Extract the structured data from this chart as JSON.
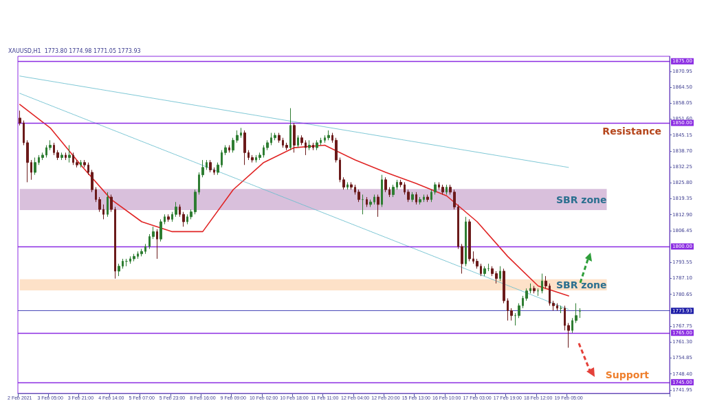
{
  "chart_data": {
    "type": "candlestick",
    "annotations": [
      "XAUUSD,H1  1773.80 1774.98 1771.05 1773.93",
      "Resistance",
      "Support"
    ],
    "categories": [
      "2 Feb 2021",
      null,
      null,
      null,
      null,
      null,
      null,
      null,
      "3 Feb 05:00",
      null,
      null,
      null,
      null,
      null,
      null,
      null,
      "3 Feb 21:00",
      null,
      null,
      null,
      null,
      null,
      null,
      null,
      "4 Feb 14:00",
      null,
      null,
      null,
      null,
      null,
      null,
      null,
      "5 Feb 07:00",
      null,
      null,
      null,
      null,
      null,
      null,
      null,
      "5 Feb 23:00",
      null,
      null,
      null,
      null,
      null,
      null,
      null,
      "8 Feb 16:00",
      null,
      null,
      null,
      null,
      null,
      null,
      null,
      "9 Feb 09:00",
      null,
      null,
      null,
      null,
      null,
      null,
      null,
      "10 Feb 02:00",
      null,
      null,
      null,
      null,
      null,
      null,
      null,
      "10 Feb 18:00",
      null,
      null,
      null,
      null,
      null,
      null,
      null,
      "11 Feb 11:00",
      null,
      null,
      null,
      null,
      null,
      null,
      null,
      "12 Feb 04:00",
      null,
      null,
      null,
      null,
      null,
      null,
      null,
      "12 Feb 20:00",
      null,
      null,
      null,
      null,
      null,
      null,
      null,
      "15 Feb 13:00",
      null,
      null,
      null,
      null,
      null,
      null,
      null,
      "16 Feb 10:00",
      null,
      null,
      null,
      null,
      null,
      null,
      null,
      "17 Feb 03:00",
      null,
      null,
      null,
      null,
      null,
      null,
      null,
      "17 Feb 19:00",
      null,
      null,
      null,
      null,
      null,
      null,
      null,
      "18 Feb 12:00",
      null,
      null,
      null,
      null,
      null,
      null,
      null,
      "19 Feb 05:00",
      null,
      null,
      null,
      null,
      null,
      null,
      null,
      null,
      null,
      null,
      null,
      null,
      null,
      null,
      null,
      null,
      null,
      null,
      null,
      null,
      null,
      null,
      null,
      null,
      null,
      null
    ],
    "ylim": [
      1740.5,
      1877
    ],
    "yticks": [
      1741.95,
      {
        "value": 1748.4,
        "label": "1748.40"
      },
      1754.85,
      {
        "value": 1761.3,
        "label": "1761.30"
      },
      1767.75,
      1780.65,
      {
        "value": 1787.1,
        "label": "1787.10"
      },
      1793.55,
      1806.45,
      {
        "value": 1812.9,
        "label": "1812.90"
      },
      1819.35,
      {
        "value": 1825.8,
        "label": "1825.80"
      },
      1832.25,
      {
        "value": 1838.7,
        "label": "1838.70"
      },
      1845.15,
      {
        "value": 1851.6,
        "label": "1851.60"
      },
      1858.05,
      {
        "value": 1864.5,
        "label": "1864.50"
      },
      1870.95
    ],
    "grid": false,
    "marker": "none",
    "ref_lines": [
      {
        "axis": "y",
        "value": 1875,
        "label": "1875.00",
        "color": "#8a2be2"
      },
      {
        "axis": "y",
        "value": 1850,
        "label": "1850.00",
        "color": "#8a2be2"
      },
      {
        "axis": "y",
        "value": 1800,
        "label": "1800.00",
        "color": "#8a2be2"
      },
      {
        "axis": "y",
        "value": 1773.93,
        "label": "1773.93",
        "color": "#1a1aa6",
        "line_style": "solid"
      },
      {
        "axis": "y",
        "value": 1765,
        "label": "1765.00",
        "color": "#8a2be2"
      },
      {
        "axis": "y",
        "value": 1745,
        "label": "1745.00",
        "color": "#8a2be2"
      }
    ],
    "bands": [
      {
        "axis": "y",
        "from": 1814.7,
        "to": 1823.3,
        "label": "SBR zone",
        "color": "#d9c0dc"
      },
      {
        "axis": "y",
        "from": 1782.2,
        "to": 1786.7,
        "label": "SBR zone",
        "color": "#fde1c8"
      }
    ],
    "series": [
      {
        "colors": [
          "#6b1a1a",
          "#6b1a1a",
          "#6b1a1a",
          "#6b1a1a",
          "#2e7d32",
          "#2e7d32",
          "#2e7d32",
          "#2e7d32",
          "#2e7d32",
          "#6b1a1a",
          "#6b1a1a",
          "#2e7d32",
          "#6b1a1a",
          "#2e7d32",
          "#6b1a1a",
          "#6b1a1a",
          "#2e7d32",
          "#6b1a1a",
          "#6b1a1a",
          "#6b1a1a",
          "#6b1a1a",
          "#6b1a1a",
          "#6b1a1a",
          "#2e7d32",
          "#6b1a1a",
          "#6b1a1a",
          "#2e7d32",
          "#2e7d32",
          "#2e7d32",
          "#2e7d32",
          "#2e7d32",
          "#2e7d32",
          "#2e7d32",
          "#2e7d32",
          "#2e7d32",
          "#2e7d32",
          "#6b1a1a",
          "#2e7d32",
          "#2e7d32",
          "#6b1a1a",
          "#2e7d32",
          "#2e7d32",
          "#6b1a1a",
          "#6b1a1a",
          "#2e7d32",
          "#2e7d32",
          "#2e7d32",
          "#2e7d32",
          "#2e7d32",
          "#2e7d32",
          "#6b1a1a",
          "#6b1a1a",
          "#2e7d32",
          "#2e7d32",
          "#2e7d32",
          "#6b1a1a",
          "#2e7d32",
          "#2e7d32",
          "#2e7d32",
          "#6b1a1a",
          "#6b1a1a",
          "#6b1a1a",
          "#2e7d32",
          "#2e7d32",
          "#2e7d32",
          "#2e7d32",
          "#2e7d32",
          "#2e7d32",
          "#6b1a1a",
          "#6b1a1a",
          "#6b1a1a",
          "#2e7d32",
          "#6b1a1a",
          "#2e7d32",
          "#6b1a1a",
          "#6b1a1a",
          "#2e7d32",
          "#6b1a1a",
          "#2e7d32",
          "#2e7d32",
          "#2e7d32",
          "#2e7d32",
          "#6b1a1a",
          "#6b1a1a",
          "#6b1a1a",
          "#6b1a1a",
          "#2e7d32",
          "#6b1a1a",
          "#6b1a1a",
          "#6b1a1a",
          "#2e7d32",
          "#6b1a1a",
          "#2e7d32",
          "#2e7d32",
          "#6b1a1a",
          "#2e7d32",
          "#6b1a1a",
          "#6b1a1a",
          "#2e7d32",
          "#2e7d32",
          "#6b1a1a",
          "#6b1a1a",
          "#6b1a1a",
          "#2e7d32",
          "#6b1a1a",
          "#2e7d32",
          "#2e7d32",
          "#6b1a1a",
          "#2e7d32",
          "#2e7d32",
          "#6b1a1a",
          "#6b1a1a",
          "#2e7d32",
          "#6b1a1a",
          "#6b1a1a",
          "#6b1a1a",
          "#6b1a1a",
          "#2e7d32",
          "#6b1a1a",
          "#6b1a1a",
          "#6b1a1a",
          "#6b1a1a",
          "#2e7d32",
          "#2e7d32",
          "#6b1a1a",
          "#6b1a1a",
          "#2e7d32",
          "#6b1a1a",
          "#6b1a1a",
          "#6b1a1a",
          "#2e7d32",
          "#2e7d32",
          "#2e7d32",
          "#2e7d32",
          "#2e7d32",
          "#6b1a1a",
          "#2e7d32",
          "#2e7d32",
          "#6b1a1a",
          "#6b1a1a",
          "#6b1a1a",
          "#6b1a1a",
          "#2e7d32",
          "#6b1a1a",
          "#6b1a1a",
          "#2e7d32",
          "#2e7d32",
          "#2e7d32",
          null,
          null,
          null,
          null,
          null,
          null,
          null,
          null,
          null,
          null,
          null,
          null,
          null,
          null,
          null,
          null,
          null,
          null,
          null,
          null,
          null,
          null,
          null
        ],
        "ohlc": [
          [
            1852,
            1855,
            1849,
            1850
          ],
          [
            1850,
            1851,
            1841,
            1842
          ],
          [
            1842,
            1843,
            1826,
            1834
          ],
          [
            1834,
            1835,
            1827,
            1830
          ],
          [
            1830,
            1836,
            1829,
            1834
          ],
          [
            1834,
            1837,
            1833,
            1836
          ],
          [
            1836,
            1838,
            1835,
            1837
          ],
          [
            1837,
            1841,
            1836,
            1840
          ],
          [
            1840,
            1843,
            1839,
            1841
          ],
          [
            1841,
            1842,
            1837,
            1838
          ],
          [
            1838,
            1839,
            1835,
            1836
          ],
          [
            1836,
            1838,
            1835,
            1837
          ],
          [
            1837,
            1838,
            1835,
            1836
          ],
          [
            1836,
            1841,
            1834,
            1837
          ],
          [
            1837,
            1838,
            1833,
            1834
          ],
          [
            1834,
            1835,
            1832,
            1833
          ],
          [
            1833,
            1835,
            1832,
            1834
          ],
          [
            1834,
            1835,
            1832,
            1833
          ],
          [
            1833,
            1834,
            1829,
            1830
          ],
          [
            1830,
            1831,
            1822,
            1823
          ],
          [
            1823,
            1824,
            1818,
            1819
          ],
          [
            1819,
            1820,
            1814,
            1815
          ],
          [
            1815,
            1817,
            1811,
            1813
          ],
          [
            1813,
            1822,
            1812,
            1820
          ],
          [
            1820,
            1821,
            1814,
            1815
          ],
          [
            1815,
            1816,
            1787,
            1790
          ],
          [
            1790,
            1793,
            1788,
            1792
          ],
          [
            1792,
            1795,
            1791,
            1794
          ],
          [
            1794,
            1795,
            1792,
            1794
          ],
          [
            1794,
            1796,
            1793,
            1795
          ],
          [
            1795,
            1797,
            1794,
            1796
          ],
          [
            1796,
            1798,
            1795,
            1797
          ],
          [
            1797,
            1799,
            1796,
            1798
          ],
          [
            1798,
            1801,
            1797,
            1800
          ],
          [
            1800,
            1805,
            1799,
            1804
          ],
          [
            1804,
            1808,
            1803,
            1806
          ],
          [
            1806,
            1807,
            1795,
            1803
          ],
          [
            1803,
            1811,
            1802,
            1810
          ],
          [
            1810,
            1813,
            1809,
            1812
          ],
          [
            1812,
            1813,
            1810,
            1811
          ],
          [
            1811,
            1814,
            1810,
            1813
          ],
          [
            1813,
            1818,
            1812,
            1816
          ],
          [
            1816,
            1817,
            1812,
            1813
          ],
          [
            1813,
            1814,
            1808,
            1810
          ],
          [
            1810,
            1813,
            1809,
            1812
          ],
          [
            1812,
            1815,
            1811,
            1814
          ],
          [
            1814,
            1823,
            1813,
            1822
          ],
          [
            1822,
            1830,
            1821,
            1829
          ],
          [
            1829,
            1835,
            1828,
            1832
          ],
          [
            1832,
            1835,
            1831,
            1834
          ],
          [
            1834,
            1835,
            1830,
            1831
          ],
          [
            1831,
            1832,
            1829,
            1830
          ],
          [
            1830,
            1834,
            1829,
            1833
          ],
          [
            1833,
            1839,
            1832,
            1838
          ],
          [
            1838,
            1841,
            1837,
            1840
          ],
          [
            1840,
            1841,
            1838,
            1839
          ],
          [
            1839,
            1844,
            1838,
            1843
          ],
          [
            1843,
            1847,
            1842,
            1845
          ],
          [
            1845,
            1848,
            1844,
            1846
          ],
          [
            1846,
            1847,
            1833,
            1838
          ],
          [
            1838,
            1839,
            1835,
            1836
          ],
          [
            1836,
            1837,
            1834,
            1835
          ],
          [
            1835,
            1837,
            1834,
            1836
          ],
          [
            1836,
            1838,
            1835,
            1837
          ],
          [
            1837,
            1841,
            1836,
            1840
          ],
          [
            1840,
            1843,
            1839,
            1842
          ],
          [
            1842,
            1846,
            1841,
            1844
          ],
          [
            1844,
            1846,
            1843,
            1845
          ],
          [
            1845,
            1846,
            1842,
            1843
          ],
          [
            1843,
            1844,
            1840,
            1841
          ],
          [
            1841,
            1842,
            1839,
            1840
          ],
          [
            1840,
            1856,
            1839,
            1849
          ],
          [
            1849,
            1850,
            1838,
            1841
          ],
          [
            1841,
            1845,
            1840,
            1844
          ],
          [
            1844,
            1845,
            1841,
            1842
          ],
          [
            1842,
            1843,
            1837,
            1840
          ],
          [
            1840,
            1843,
            1839,
            1841
          ],
          [
            1841,
            1842,
            1839,
            1840
          ],
          [
            1840,
            1843,
            1839,
            1842
          ],
          [
            1842,
            1844,
            1841,
            1843
          ],
          [
            1843,
            1845,
            1842,
            1844
          ],
          [
            1844,
            1847,
            1843,
            1845
          ],
          [
            1845,
            1846,
            1842,
            1843
          ],
          [
            1843,
            1844,
            1834,
            1835
          ],
          [
            1835,
            1836,
            1826,
            1827
          ],
          [
            1827,
            1828,
            1823,
            1824
          ],
          [
            1824,
            1826,
            1823,
            1825
          ],
          [
            1825,
            1826,
            1823,
            1824
          ],
          [
            1824,
            1825,
            1821,
            1822
          ],
          [
            1822,
            1823,
            1818,
            1819
          ],
          [
            1819,
            1821,
            1813,
            1819
          ],
          [
            1819,
            1820,
            1816,
            1817
          ],
          [
            1817,
            1819,
            1816,
            1818
          ],
          [
            1818,
            1821,
            1817,
            1820
          ],
          [
            1820,
            1821,
            1812,
            1817
          ],
          [
            1817,
            1829,
            1816,
            1827
          ],
          [
            1827,
            1828,
            1822,
            1823
          ],
          [
            1823,
            1824,
            1820,
            1821
          ],
          [
            1821,
            1825,
            1820,
            1824
          ],
          [
            1824,
            1827,
            1823,
            1826
          ],
          [
            1826,
            1827,
            1824,
            1825
          ],
          [
            1825,
            1826,
            1821,
            1822
          ],
          [
            1822,
            1823,
            1818,
            1819
          ],
          [
            1819,
            1822,
            1818,
            1821
          ],
          [
            1821,
            1822,
            1817,
            1818
          ],
          [
            1818,
            1820,
            1817,
            1819
          ],
          [
            1819,
            1821,
            1818,
            1820
          ],
          [
            1820,
            1821,
            1818,
            1819
          ],
          [
            1819,
            1823,
            1818,
            1822
          ],
          [
            1822,
            1826,
            1821,
            1825
          ],
          [
            1825,
            1826,
            1823,
            1824
          ],
          [
            1824,
            1825,
            1821,
            1822
          ],
          [
            1822,
            1825,
            1821,
            1824
          ],
          [
            1824,
            1825,
            1821,
            1822
          ],
          [
            1822,
            1823,
            1815,
            1816
          ],
          [
            1816,
            1817,
            1799,
            1800
          ],
          [
            1800,
            1801,
            1789,
            1793
          ],
          [
            1793,
            1812,
            1792,
            1810
          ],
          [
            1810,
            1811,
            1794,
            1795
          ],
          [
            1795,
            1798,
            1793,
            1794
          ],
          [
            1794,
            1795,
            1791,
            1792
          ],
          [
            1792,
            1793,
            1788,
            1789
          ],
          [
            1789,
            1792,
            1788,
            1791
          ],
          [
            1791,
            1793,
            1790,
            1791
          ],
          [
            1791,
            1792,
            1788,
            1789
          ],
          [
            1789,
            1790,
            1785,
            1787
          ],
          [
            1787,
            1792,
            1786,
            1790
          ],
          [
            1790,
            1791,
            1777,
            1778
          ],
          [
            1778,
            1779,
            1770,
            1774
          ],
          [
            1774,
            1775,
            1770,
            1772
          ],
          [
            1772,
            1773,
            1768,
            1772
          ],
          [
            1772,
            1777,
            1771,
            1776
          ],
          [
            1776,
            1780,
            1775,
            1779
          ],
          [
            1779,
            1783,
            1778,
            1782
          ],
          [
            1782,
            1785,
            1781,
            1783
          ],
          [
            1783,
            1784,
            1781,
            1782
          ],
          [
            1782,
            1783,
            1780,
            1782
          ],
          [
            1782,
            1789,
            1781,
            1786
          ],
          [
            1786,
            1788,
            1783,
            1784
          ],
          [
            1784,
            1785,
            1776,
            1777
          ],
          [
            1777,
            1778,
            1774,
            1776
          ],
          [
            1776,
            1777,
            1774,
            1775
          ],
          [
            1775,
            1776,
            1773,
            1775
          ],
          [
            1775,
            1776,
            1766,
            1768
          ],
          [
            1768,
            1769,
            1759,
            1766
          ],
          [
            1766,
            1771,
            1765,
            1770
          ],
          [
            1770,
            1777,
            1769,
            1772
          ],
          [
            1773.8,
            1774.98,
            1771.05,
            1773.93
          ],
          null,
          null,
          null,
          null,
          null,
          null,
          null,
          null,
          null,
          null,
          null,
          null,
          null,
          null,
          null,
          null,
          null,
          null,
          null,
          null,
          null,
          null,
          null
        ]
      },
      {
        "type": "line",
        "color": "#e02424",
        "x": [
          "2 Feb 2021",
          "3 Feb 05:00",
          "3 Feb 21:00",
          "4 Feb 14:00",
          "5 Feb 07:00",
          "5 Feb 23:00",
          "8 Feb 16:00",
          "9 Feb 09:00",
          "10 Feb 02:00",
          "10 Feb 18:00",
          "11 Feb 11:00",
          "12 Feb 04:00",
          "12 Feb 20:00",
          "15 Feb 13:00",
          "16 Feb 10:00",
          "17 Feb 03:00",
          "17 Feb 19:00",
          "18 Feb 12:00",
          "19 Feb 05:00"
        ],
        "values": [
          1857.5,
          1848,
          1833,
          1819,
          1810,
          1806,
          1806,
          1823,
          1834,
          1840,
          1841,
          1835,
          1830,
          1825.5,
          1820.5,
          1810,
          1796,
          1784,
          1780
        ]
      },
      {
        "type": "line",
        "color": "#6bbfcf",
        "line_style": "dotted",
        "x": [
          "2 Feb 2021",
          "19 Feb 05:00"
        ],
        "values": [
          1869,
          1832
        ]
      },
      {
        "type": "line",
        "color": "#6bbfcf",
        "line_style": "dotted",
        "x": [
          "2 Feb 2021",
          "19 Feb 05:00"
        ],
        "values": [
          1862,
          1774.5
        ]
      }
    ]
  }
}
